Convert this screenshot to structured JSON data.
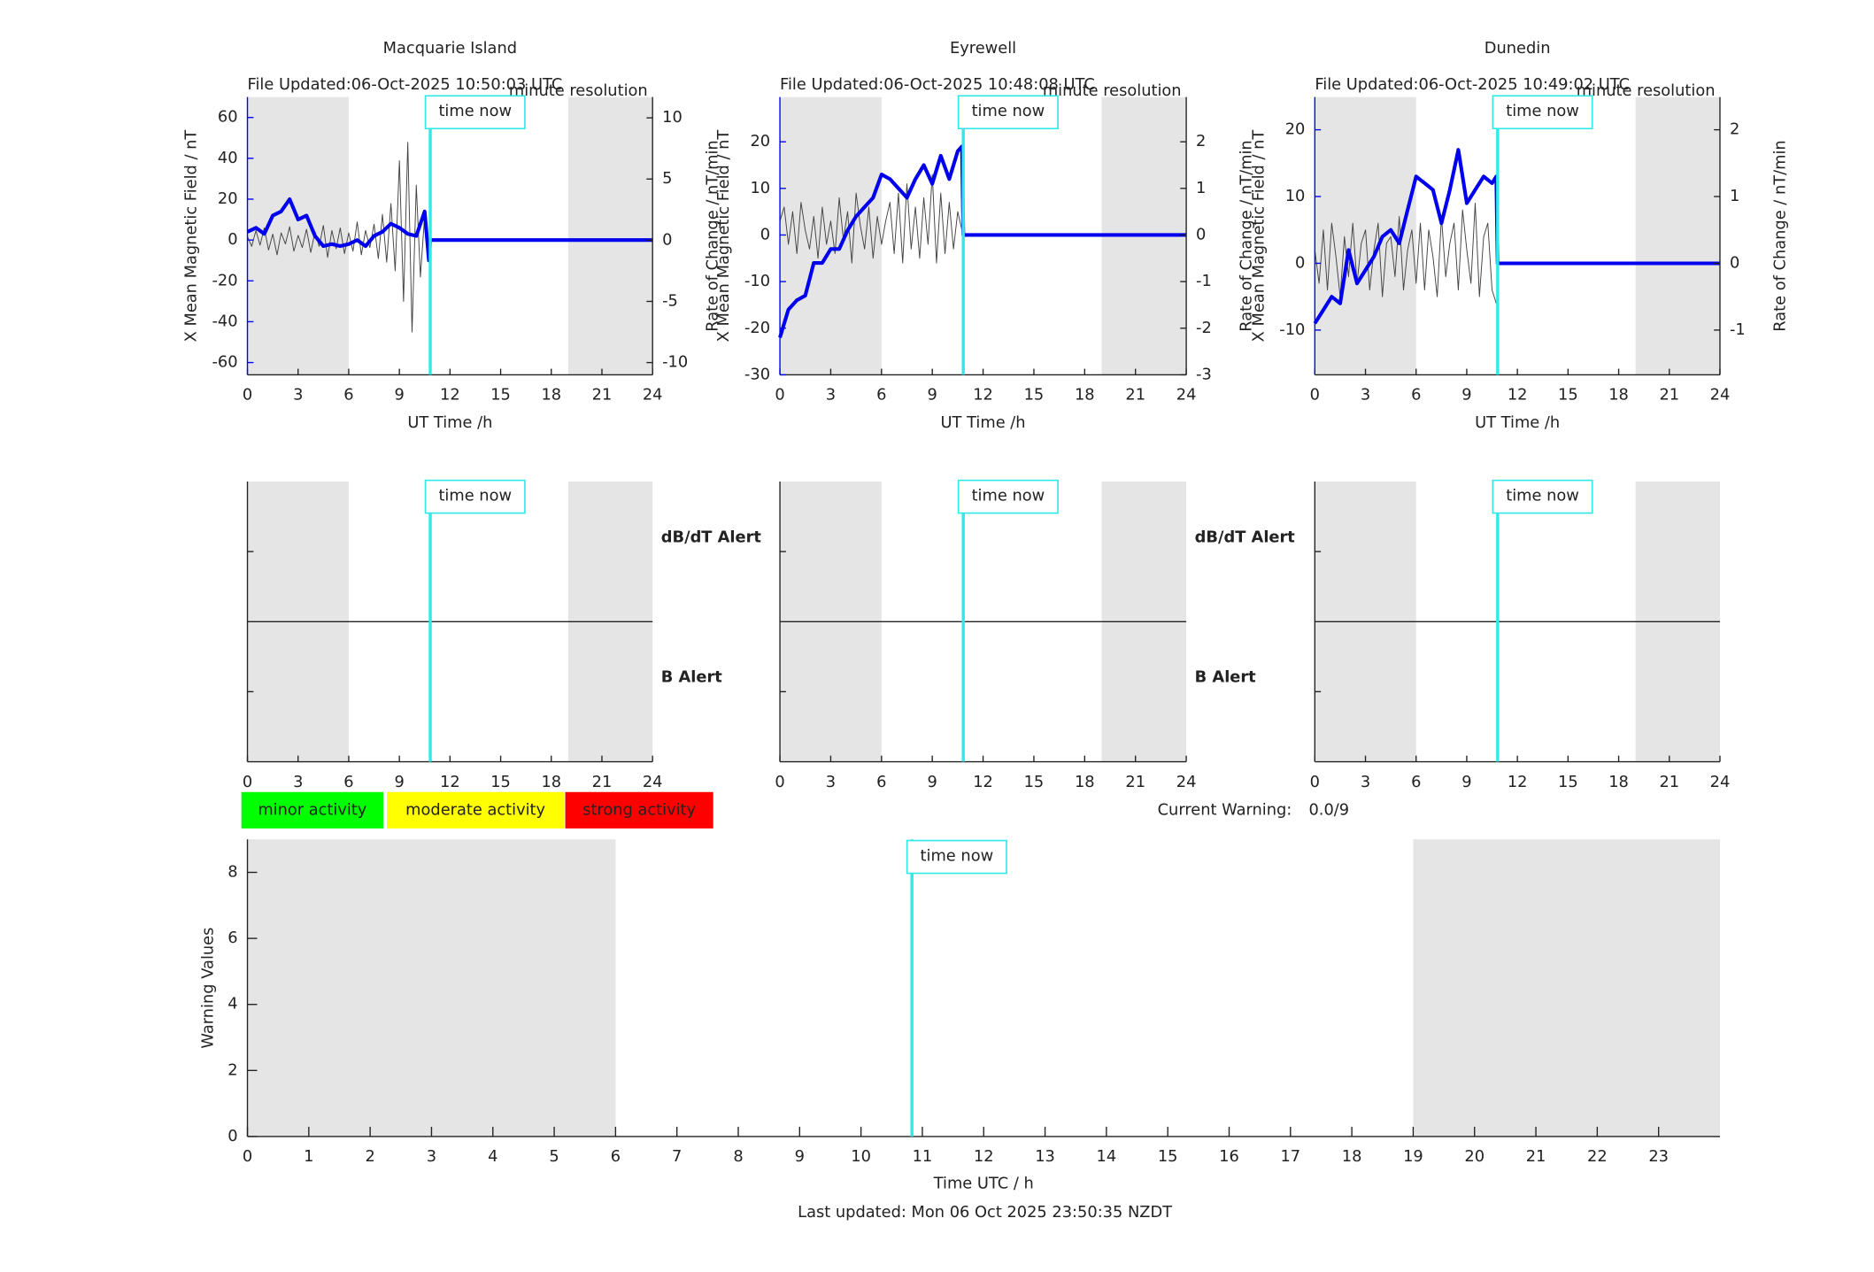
{
  "chart_data": [
    {
      "type": "line",
      "title": "Macquarie Island",
      "subtitle": "File Updated:06-Oct-2025 10:50:03 UTC",
      "note": "minute resolution",
      "annotation": "time now",
      "time_now": 10.83,
      "time_now_color": "#33e8e8",
      "xlabel": "UT Time /h",
      "ylabel": "X Mean Magnetic Field / nT",
      "y2label": "Rate of Change / nT/min",
      "axis_color": "#0000ff",
      "xlim": [
        0,
        24
      ],
      "xticks": [
        0,
        3,
        6,
        9,
        12,
        15,
        18,
        21,
        24
      ],
      "ylim": [
        -66,
        70
      ],
      "yticks": [
        -60,
        -40,
        -20,
        0,
        20,
        40,
        60
      ],
      "y2lim": [
        -11,
        11.7
      ],
      "y2ticks": [
        -10,
        -5,
        0,
        5,
        10
      ],
      "shading": [
        [
          0,
          6
        ],
        [
          19,
          24
        ]
      ],
      "series": [
        {
          "color": "#444444",
          "axis": "y2",
          "x": [
            0,
            0.25,
            0.5,
            0.75,
            1,
            1.25,
            1.5,
            1.75,
            2,
            2.25,
            2.5,
            2.75,
            3,
            3.25,
            3.5,
            3.75,
            4,
            4.25,
            4.5,
            4.75,
            5,
            5.25,
            5.5,
            5.75,
            6,
            6.25,
            6.5,
            6.75,
            7,
            7.25,
            7.5,
            7.75,
            8,
            8.25,
            8.5,
            8.75,
            9,
            9.25,
            9.5,
            9.75,
            10,
            10.25,
            10.5,
            10.75
          ],
          "values": [
            0.3,
            -0.5,
            0.8,
            -0.4,
            1,
            -0.8,
            0.5,
            -1.2,
            0.6,
            -0.3,
            1.1,
            -0.9,
            0.4,
            -0.6,
            0.9,
            -1,
            0.7,
            -0.5,
            1.2,
            -1.4,
            0.8,
            -0.7,
            1,
            -1.1,
            0.6,
            -0.9,
            1.5,
            -1.2,
            0.8,
            -0.6,
            1.3,
            -1.5,
            2.1,
            -1.8,
            3,
            -2.5,
            6.5,
            -5,
            8,
            -7.5,
            4.5,
            -3,
            2,
            -1
          ]
        },
        {
          "color": "#0000ee",
          "x": [
            0,
            0.5,
            1,
            1.5,
            2,
            2.5,
            3,
            3.5,
            4,
            4.5,
            5,
            5.5,
            6,
            6.5,
            7,
            7.5,
            8,
            8.5,
            9,
            9.5,
            10,
            10.5,
            10.75,
            10.83,
            24
          ],
          "values": [
            4,
            6,
            3,
            12,
            14,
            20,
            10,
            12,
            2,
            -3,
            -2,
            -3,
            -2,
            0,
            -3,
            2,
            4,
            8,
            6,
            3,
            2,
            14,
            -10,
            0,
            0
          ]
        }
      ]
    },
    {
      "type": "line",
      "title": "Eyrewell",
      "subtitle": "File Updated:06-Oct-2025 10:48:08 UTC",
      "note": "minute resolution",
      "annotation": "time now",
      "time_now": 10.83,
      "time_now_color": "#33e8e8",
      "xlabel": "UT Time /h",
      "ylabel": "X Mean Magnetic Field / nT",
      "y2label": "Rate of Change / nT/min",
      "axis_color": "#0000ff",
      "xlim": [
        0,
        24
      ],
      "xticks": [
        0,
        3,
        6,
        9,
        12,
        15,
        18,
        21,
        24
      ],
      "ylim": [
        -30,
        29.6
      ],
      "yticks": [
        -30,
        -20,
        -10,
        0,
        10,
        20
      ],
      "y2lim": [
        -3,
        2.96
      ],
      "y2ticks": [
        -3,
        -2,
        -1,
        0,
        1,
        2
      ],
      "shading": [
        [
          0,
          6
        ],
        [
          19,
          24
        ]
      ],
      "series": [
        {
          "color": "#444444",
          "axis": "y2",
          "x": [
            0,
            0.25,
            0.5,
            0.75,
            1,
            1.25,
            1.5,
            1.75,
            2,
            2.25,
            2.5,
            2.75,
            3,
            3.25,
            3.5,
            3.75,
            4,
            4.25,
            4.5,
            4.75,
            5,
            5.25,
            5.5,
            5.75,
            6,
            6.25,
            6.5,
            6.75,
            7,
            7.25,
            7.5,
            7.75,
            8,
            8.25,
            8.5,
            8.75,
            9,
            9.25,
            9.5,
            9.75,
            10,
            10.25,
            10.5,
            10.75
          ],
          "values": [
            0.3,
            0.6,
            -0.2,
            0.5,
            -0.4,
            0.7,
            0.1,
            -0.3,
            0.4,
            -0.5,
            0.6,
            -0.2,
            0.3,
            -0.4,
            0.8,
            -0.1,
            0.5,
            -0.6,
            0.9,
            0.2,
            -0.3,
            0.6,
            -0.5,
            0.4,
            -0.2,
            0.3,
            0.7,
            -0.4,
            0.9,
            -0.6,
            1.1,
            -0.3,
            0.6,
            -0.5,
            0.8,
            -0.2,
            1.3,
            -0.6,
            0.9,
            -0.4,
            0.7,
            -0.3,
            0.5,
            0.1
          ]
        },
        {
          "color": "#0000ee",
          "x": [
            0,
            0.5,
            1,
            1.5,
            2,
            2.5,
            3,
            3.5,
            4,
            4.5,
            5,
            5.5,
            6,
            6.5,
            7,
            7.5,
            8,
            8.5,
            9,
            9.5,
            10,
            10.5,
            10.75,
            10.83,
            24
          ],
          "values": [
            -22,
            -16,
            -14,
            -13,
            -6,
            -6,
            -3,
            -3,
            1,
            4,
            6,
            8,
            13,
            12,
            10,
            8,
            12,
            15,
            11,
            17,
            12,
            18,
            19,
            0,
            0
          ]
        }
      ]
    },
    {
      "type": "line",
      "title": "Dunedin",
      "subtitle": "File Updated:06-Oct-2025 10:49:02 UTC",
      "note": "minute resolution",
      "annotation": "time now",
      "time_now": 10.83,
      "time_now_color": "#33e8e8",
      "xlabel": "UT Time /h",
      "ylabel": "X Mean Magnetic Field / nT",
      "y2label": "Rate of Change / nT/min",
      "axis_color": "#0000ff",
      "xlim": [
        0,
        24
      ],
      "xticks": [
        0,
        3,
        6,
        9,
        12,
        15,
        18,
        21,
        24
      ],
      "ylim": [
        -16.7,
        24.9
      ],
      "yticks": [
        -10,
        0,
        10,
        20
      ],
      "y2lim": [
        -1.67,
        2.49
      ],
      "y2ticks": [
        -1,
        0,
        1,
        2
      ],
      "shading": [
        [
          0,
          6
        ],
        [
          19,
          24
        ]
      ],
      "series": [
        {
          "color": "#444444",
          "axis": "y2",
          "x": [
            0,
            0.25,
            0.5,
            0.75,
            1,
            1.25,
            1.5,
            1.75,
            2,
            2.25,
            2.5,
            2.75,
            3,
            3.25,
            3.5,
            3.75,
            4,
            4.25,
            4.5,
            4.75,
            5,
            5.25,
            5.5,
            5.75,
            6,
            6.25,
            6.5,
            6.75,
            7,
            7.25,
            7.5,
            7.75,
            8,
            8.25,
            8.5,
            8.75,
            9,
            9.25,
            9.5,
            9.75,
            10,
            10.25,
            10.5,
            10.75
          ],
          "values": [
            0.2,
            -0.3,
            0.5,
            -0.4,
            0.6,
            0.1,
            -0.5,
            0.4,
            -0.2,
            0.6,
            -0.3,
            0.3,
            0.5,
            -0.4,
            0.2,
            0.6,
            -0.5,
            0.3,
            0.4,
            -0.2,
            0.7,
            -0.4,
            0.2,
            0.5,
            -0.3,
            0.6,
            -0.4,
            0.5,
            0.1,
            -0.5,
            0.7,
            -0.2,
            0.3,
            0.6,
            -0.4,
            0.8,
            0.2,
            -0.3,
            0.9,
            -0.5,
            0.4,
            0.6,
            -0.4,
            -0.6
          ]
        },
        {
          "color": "#0000ee",
          "x": [
            0,
            0.5,
            1,
            1.5,
            2,
            2.5,
            3,
            3.5,
            4,
            4.5,
            5,
            5.5,
            6,
            6.5,
            7,
            7.5,
            8,
            8.5,
            9,
            9.5,
            10,
            10.5,
            10.75,
            10.83,
            24
          ],
          "values": [
            -9,
            -7,
            -5,
            -6,
            2,
            -3,
            -1,
            1,
            4,
            5,
            3,
            8,
            13,
            12,
            11,
            6,
            11,
            17,
            9,
            11,
            13,
            12,
            13,
            0,
            0
          ]
        }
      ]
    },
    {
      "type": "alert",
      "annotation": "time now",
      "time_now": 10.83,
      "time_now_color": "#33e8e8",
      "xlim": [
        0,
        24
      ],
      "xticks": [
        0,
        3,
        6,
        9,
        12,
        15,
        18,
        21,
        24
      ],
      "shading": [
        [
          0,
          6
        ],
        [
          19,
          24
        ]
      ],
      "labels": [
        "dB/dT Alert",
        "B Alert"
      ],
      "label_colors": [
        "#000000",
        "#0000ff"
      ]
    },
    {
      "type": "alert",
      "annotation": "time now",
      "time_now": 10.83,
      "time_now_color": "#33e8e8",
      "xlim": [
        0,
        24
      ],
      "xticks": [
        0,
        3,
        6,
        9,
        12,
        15,
        18,
        21,
        24
      ],
      "shading": [
        [
          0,
          6
        ],
        [
          19,
          24
        ]
      ],
      "labels": [
        "dB/dT Alert",
        "B Alert"
      ],
      "label_colors": [
        "#000000",
        "#0000ff"
      ]
    },
    {
      "type": "alert",
      "annotation": "time now",
      "time_now": 10.83,
      "time_now_color": "#33e8e8",
      "xlim": [
        0,
        24
      ],
      "xticks": [
        0,
        3,
        6,
        9,
        12,
        15,
        18,
        21,
        24
      ],
      "shading": [
        [
          0,
          6
        ],
        [
          19,
          24
        ]
      ]
    },
    {
      "type": "bar",
      "annotation": "time now",
      "time_now": 10.83,
      "time_now_color": "#33e8e8",
      "xlabel": "Time UTC / h",
      "ylabel": "Warning Values",
      "xlim": [
        0,
        24
      ],
      "xticks": [
        0,
        1,
        2,
        3,
        4,
        5,
        6,
        7,
        8,
        9,
        10,
        11,
        12,
        13,
        14,
        15,
        16,
        17,
        18,
        19,
        20,
        21,
        22,
        23
      ],
      "ylim": [
        0,
        9
      ],
      "yticks": [
        0,
        2,
        4,
        6,
        8
      ],
      "shading": [
        [
          0,
          6
        ],
        [
          19,
          24
        ]
      ],
      "activity_levels": [
        {
          "label": "minor activity",
          "color": "#00ff00"
        },
        {
          "label": "moderate activity",
          "color": "#ffff00"
        },
        {
          "label": "strong activity",
          "color": "#ff0000"
        }
      ],
      "current_warning_label": "Current Warning:",
      "current_warning": "0.0/9"
    }
  ],
  "footer": "Last updated: Mon 06 Oct 2025 23:50:35 NZDT"
}
